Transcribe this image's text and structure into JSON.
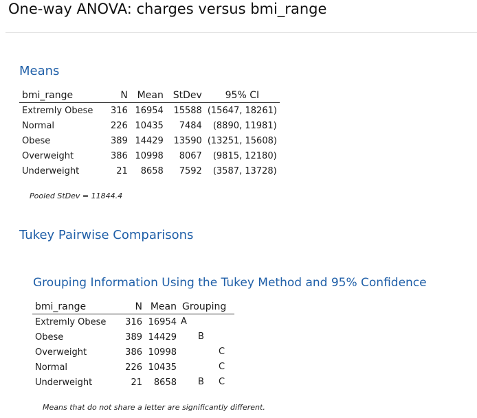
{
  "page_title": "One-way ANOVA: charges versus bmi_range",
  "means": {
    "heading": "Means",
    "columns": [
      "bmi_range",
      "N",
      "Mean",
      "StDev",
      "95% CI"
    ],
    "rows": [
      [
        "Extremly Obese",
        "316",
        "16954",
        "15588",
        "(15647, 18261)"
      ],
      [
        "Normal",
        "226",
        "10435",
        "7484",
        "(8890, 11981)"
      ],
      [
        "Obese",
        "389",
        "14429",
        "13590",
        "(13251, 15608)"
      ],
      [
        "Overweight",
        "386",
        "10998",
        "8067",
        "(9815, 12180)"
      ],
      [
        "Underweight",
        "21",
        "8658",
        "7592",
        "(3587, 13728)"
      ]
    ],
    "pooled_note": "Pooled StDev = 11844.4"
  },
  "tukey": {
    "heading": "Tukey Pairwise Comparisons",
    "grouping_heading": "Grouping Information Using the Tukey Method and 95% Confidence",
    "columns": [
      "bmi_range",
      "N",
      "Mean",
      "Grouping"
    ],
    "rows": [
      {
        "range": "Extremly Obese",
        "n": "316",
        "mean": "16954",
        "g1": "A",
        "g2": "",
        "g3": ""
      },
      {
        "range": "Obese",
        "n": "389",
        "mean": "14429",
        "g1": "",
        "g2": "B",
        "g3": ""
      },
      {
        "range": "Overweight",
        "n": "386",
        "mean": "10998",
        "g1": "",
        "g2": "",
        "g3": "C"
      },
      {
        "range": "Normal",
        "n": "226",
        "mean": "10435",
        "g1": "",
        "g2": "",
        "g3": "C"
      },
      {
        "range": "Underweight",
        "n": "21",
        "mean": "8658",
        "g1": "",
        "g2": "B",
        "g3": "C"
      }
    ],
    "footnote": "Means that do not share a letter are significantly different."
  }
}
